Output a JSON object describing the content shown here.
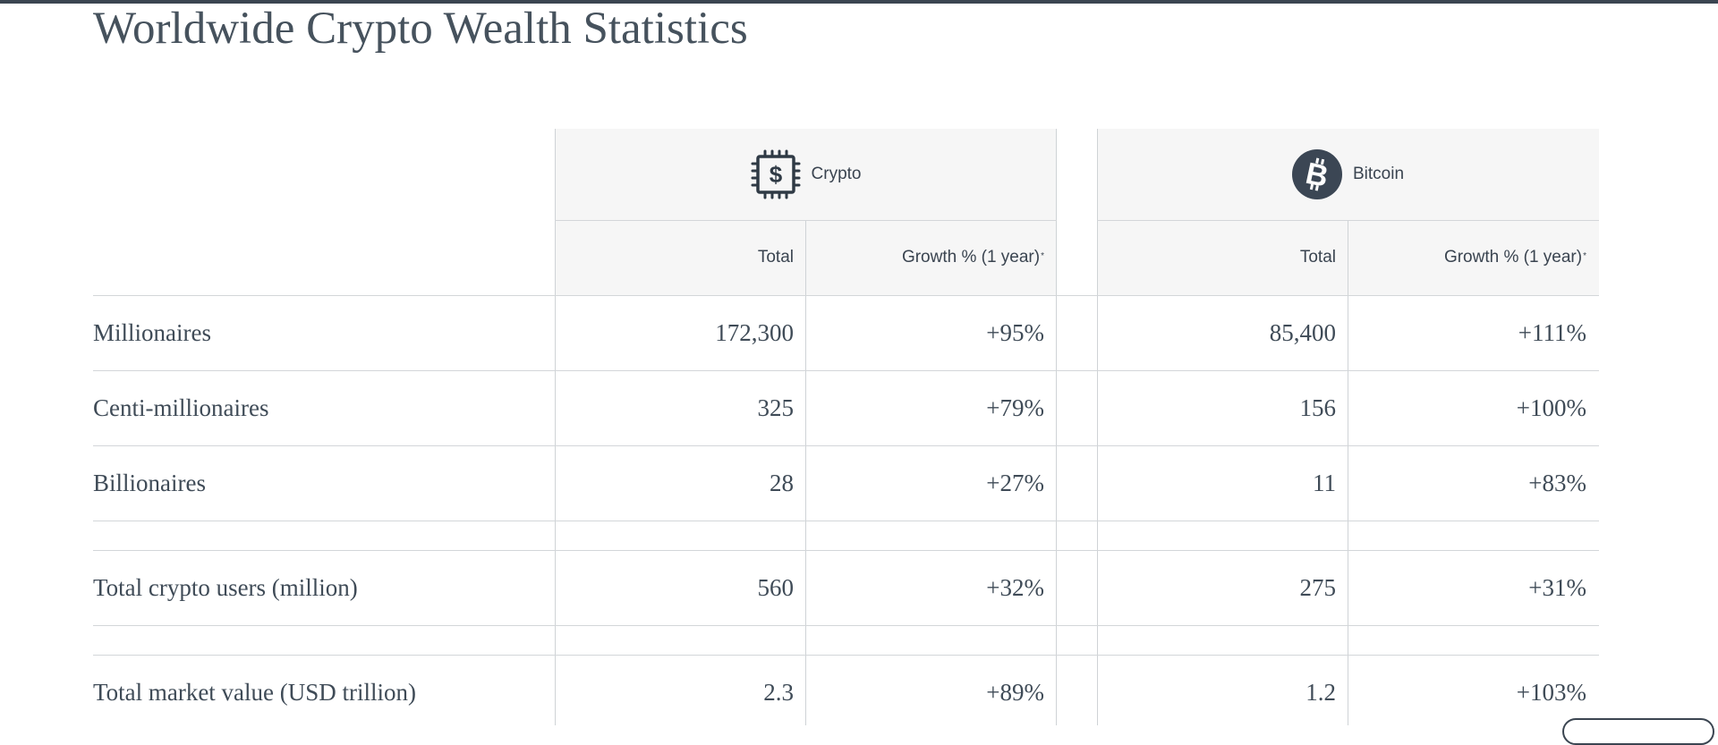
{
  "page": {
    "title": "Worldwide Crypto Wealth Statistics"
  },
  "table": {
    "groups": [
      {
        "label": "Crypto",
        "icon": "crypto-chip-dollar-icon"
      },
      {
        "label": "Bitcoin",
        "icon": "bitcoin-icon"
      }
    ],
    "columns": {
      "total": "Total",
      "growth": "Growth % (1 year)",
      "growth_footnote": "*"
    },
    "rows": [
      {
        "label": "Millionaires",
        "crypto_total": "172,300",
        "crypto_growth": "+95%",
        "bitcoin_total": "85,400",
        "bitcoin_growth": "+111%"
      },
      {
        "label": "Centi-millionaires",
        "crypto_total": "325",
        "crypto_growth": "+79%",
        "bitcoin_total": "156",
        "bitcoin_growth": "+100%"
      },
      {
        "label": "Billionaires",
        "crypto_total": "28",
        "crypto_growth": "+27%",
        "bitcoin_total": "11",
        "bitcoin_growth": "+83%"
      },
      {
        "label": "Total crypto users (million)",
        "crypto_total": "560",
        "crypto_growth": "+32%",
        "bitcoin_total": "275",
        "bitcoin_growth": "+31%"
      },
      {
        "label": "Total market value (USD trillion)",
        "crypto_total": "2.3",
        "crypto_growth": "+89%",
        "bitcoin_total": "1.2",
        "bitcoin_growth": "+103%"
      }
    ]
  },
  "colors": {
    "text": "#3f4b57",
    "header_background": "#f6f6f6",
    "grid_line": "#cfd3d6",
    "top_bar": "#3b4551"
  }
}
